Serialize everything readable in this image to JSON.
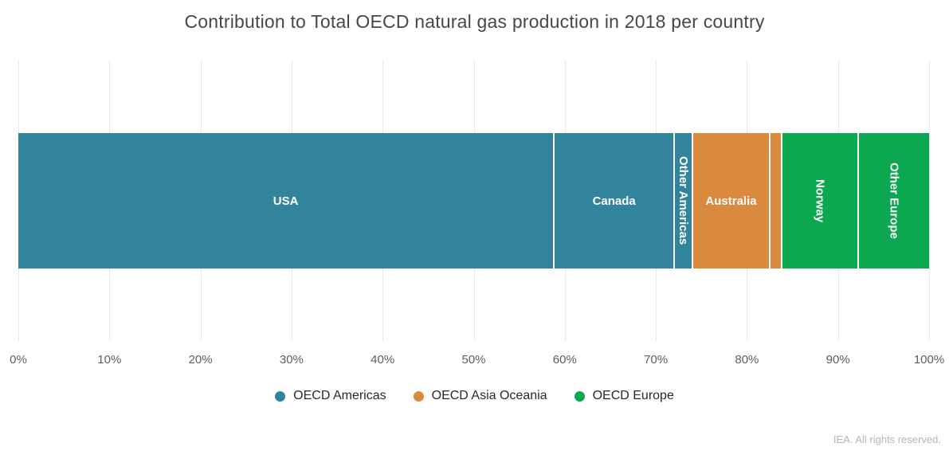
{
  "title": "Contribution to Total OECD natural gas production in 2018 per country",
  "footer": {
    "credit": "IEA. All rights reserved."
  },
  "colors": {
    "oecd_americas": "#31849B",
    "oecd_asia_oceania": "#DA8A3D",
    "oecd_europe": "#0BA84F",
    "gridline": "#E8E8E8",
    "segment_label": "#FFFFFF"
  },
  "chart_data": {
    "type": "bar",
    "variant": "stacked-horizontal-single-bar",
    "title": "Contribution to Total OECD natural gas production in 2018 per country",
    "xlabel": "",
    "ylabel": "",
    "unit": "%",
    "xlim": [
      0,
      100
    ],
    "grid": true,
    "legend_position": "bottom",
    "x_ticks": [
      "0%",
      "10%",
      "20%",
      "30%",
      "40%",
      "50%",
      "60%",
      "70%",
      "80%",
      "90%",
      "100%"
    ],
    "segments": [
      {
        "name": "usa",
        "label": "USA",
        "group": "OECD Americas",
        "value": 58.9,
        "color": "#31849B",
        "label_orientation": "horizontal"
      },
      {
        "name": "canada",
        "label": "Canada",
        "group": "OECD Americas",
        "value": 13.2,
        "color": "#31849B",
        "label_orientation": "horizontal"
      },
      {
        "name": "other-americas",
        "label": "Other Americas",
        "group": "OECD Americas",
        "value": 2.0,
        "color": "#31849B",
        "label_orientation": "vertical"
      },
      {
        "name": "australia",
        "label": "Australia",
        "group": "OECD Asia Oceania",
        "value": 8.5,
        "color": "#DA8A3D",
        "label_orientation": "horizontal"
      },
      {
        "name": "other-asia-oceania",
        "label": "",
        "group": "OECD Asia Oceania",
        "value": 1.3,
        "color": "#DA8A3D",
        "label_orientation": "horizontal"
      },
      {
        "name": "norway",
        "label": "Norway",
        "group": "OECD Europe",
        "value": 8.4,
        "color": "#0BA84F",
        "label_orientation": "vertical"
      },
      {
        "name": "other-europe",
        "label": "Other Europe",
        "group": "OECD Europe",
        "value": 7.7,
        "color": "#0BA84F",
        "label_orientation": "vertical"
      }
    ],
    "legend": [
      {
        "name": "oecd-americas",
        "label": "OECD Americas",
        "color": "#31849B"
      },
      {
        "name": "oecd-asia-oceania",
        "label": "OECD Asia Oceania",
        "color": "#DA8A3D"
      },
      {
        "name": "oecd-europe",
        "label": "OECD Europe",
        "color": "#0BA84F"
      }
    ]
  }
}
